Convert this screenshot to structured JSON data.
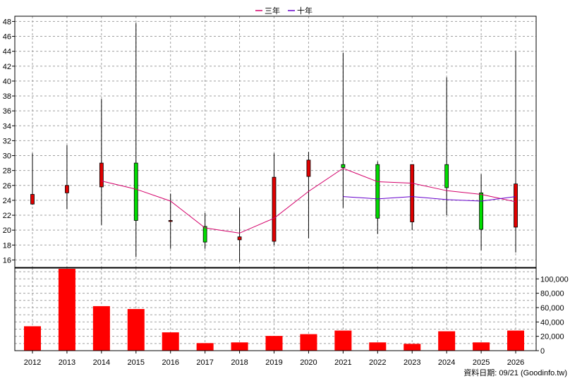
{
  "chart_data": {
    "type": "candlestick",
    "title": "",
    "legend": {
      "placement": "top-center",
      "items": [
        {
          "name": "三年",
          "color": "#d4006a"
        },
        {
          "name": "十年",
          "color": "#6600cc"
        }
      ]
    },
    "categories": [
      "2012",
      "2013",
      "2014",
      "2015",
      "2016",
      "2017",
      "2018",
      "2019",
      "2020",
      "2021",
      "2022",
      "2023",
      "2024",
      "2025",
      "2026"
    ],
    "price_axis": {
      "ylim": [
        15,
        48.7
      ],
      "ticks": [
        16,
        18,
        20,
        22,
        24,
        26,
        28,
        30,
        32,
        34,
        36,
        38,
        40,
        42,
        44,
        46,
        48
      ],
      "side": "left"
    },
    "volume_axis": {
      "ylim": [
        0,
        115000
      ],
      "ticks": [
        0,
        20000,
        40000,
        60000,
        80000,
        100000
      ],
      "tick_labels": [
        "0",
        "20,000",
        "40,000",
        "60,000",
        "80,000",
        "100,000"
      ],
      "side": "right"
    },
    "candles": [
      {
        "x": "2012",
        "open": 23.5,
        "close": 24.8,
        "high": 30.3,
        "low": 23.4
      },
      {
        "x": "2013",
        "open": 25.0,
        "close": 26.0,
        "high": 31.4,
        "low": 22.8
      },
      {
        "x": "2014",
        "open": 25.8,
        "close": 29.0,
        "high": 37.6,
        "low": 20.7
      },
      {
        "x": "2015",
        "open": 29.0,
        "close": 21.3,
        "high": 47.8,
        "low": 16.4
      },
      {
        "x": "2016",
        "open": 21.2,
        "close": 21.3,
        "high": 24.9,
        "low": 17.5
      },
      {
        "x": "2017",
        "open": 20.5,
        "close": 18.4,
        "high": 22.3,
        "low": 17.5
      },
      {
        "x": "2018",
        "open": 18.7,
        "close": 19.1,
        "high": 23.0,
        "low": 15.7
      },
      {
        "x": "2019",
        "open": 18.5,
        "close": 27.1,
        "high": 30.3,
        "low": 18.0
      },
      {
        "x": "2020",
        "open": 27.2,
        "close": 29.4,
        "high": 30.5,
        "low": 18.9
      },
      {
        "x": "2021",
        "open": 28.8,
        "close": 28.4,
        "high": 43.8,
        "low": 23.0
      },
      {
        "x": "2022",
        "open": 28.8,
        "close": 21.6,
        "high": 29.2,
        "low": 19.5
      },
      {
        "x": "2023",
        "open": 21.1,
        "close": 28.8,
        "high": 28.8,
        "low": 20.0
      },
      {
        "x": "2024",
        "open": 28.8,
        "close": 25.7,
        "high": 40.5,
        "low": 22.0
      },
      {
        "x": "2025",
        "open": 25.0,
        "close": 20.1,
        "high": 27.5,
        "low": 17.3
      },
      {
        "x": "2026",
        "open": 20.4,
        "close": 26.2,
        "high": 44.0,
        "low": 17.0
      }
    ],
    "series": [
      {
        "name": "三年",
        "color": "#d4006a",
        "x": [
          "2014",
          "2015",
          "2016",
          "2017",
          "2018",
          "2019",
          "2020",
          "2021",
          "2022",
          "2023",
          "2024",
          "2025",
          "2026"
        ],
        "values": [
          26.6,
          25.5,
          23.9,
          20.3,
          19.6,
          21.6,
          25.2,
          28.3,
          26.5,
          26.3,
          25.3,
          24.8,
          23.8
        ]
      },
      {
        "name": "十年",
        "color": "#6600cc",
        "x": [
          "2021",
          "2022",
          "2023",
          "2024",
          "2025",
          "2026"
        ],
        "values": [
          24.5,
          24.2,
          24.5,
          24.1,
          23.9,
          24.5
        ]
      }
    ],
    "volume": [
      34000,
      114000,
      62000,
      58000,
      25500,
      10500,
      11500,
      20500,
      23000,
      28000,
      11500,
      9500,
      27000,
      11500,
      28000
    ],
    "colors": {
      "up": "#e00000",
      "down": "#00dd00",
      "volume": "#ff0000",
      "grid": "#a0a0a0"
    },
    "grid": true,
    "footer": "資料日期: 09/21  (Goodinfo.tw)"
  }
}
